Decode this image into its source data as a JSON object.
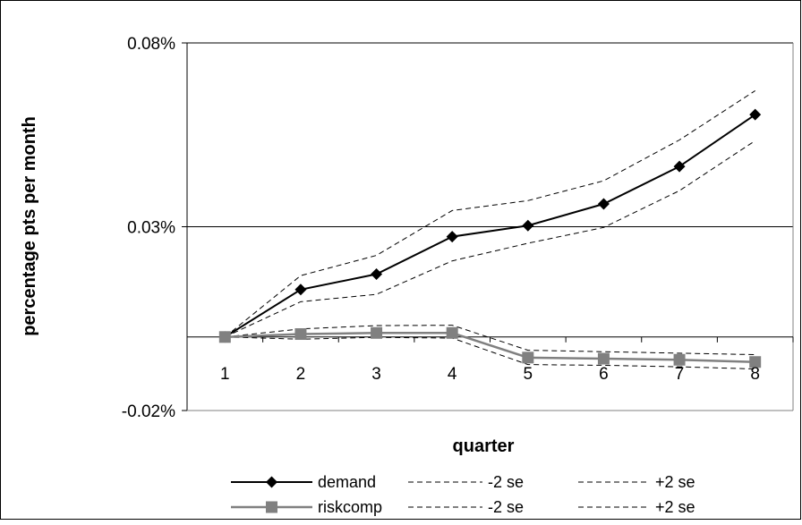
{
  "chart_data": {
    "type": "line",
    "title": "",
    "xlabel": "quarter",
    "ylabel": "percentage pts per month",
    "x": [
      1,
      2,
      3,
      4,
      5,
      6,
      7,
      8
    ],
    "ylim": [
      -0.0002,
      0.0008
    ],
    "yticks": [
      {
        "value": 0.0008,
        "label": "0.08%"
      },
      {
        "value": 0.0003,
        "label": "0.03%"
      },
      {
        "value": -0.0002,
        "label": "-0.02%"
      }
    ],
    "grid": "horizontal at tick values",
    "legend_position": "bottom",
    "series": [
      {
        "name": "demand",
        "color": "#000000",
        "marker": "diamond",
        "style": "solid",
        "values": [
          0.0,
          0.000129,
          0.000171,
          0.000273,
          0.000303,
          0.000362,
          0.000464,
          0.000605
        ]
      },
      {
        "name": "-2 se",
        "color": "#000000",
        "style": "dashed",
        "values": [
          0.0,
          9.6e-05,
          0.000116,
          0.000207,
          0.000255,
          0.000298,
          0.000398,
          0.000534
        ]
      },
      {
        "name": "+2 se",
        "color": "#000000",
        "style": "dashed",
        "values": [
          0.0,
          0.000167,
          0.000222,
          0.000344,
          0.000371,
          0.000425,
          0.000536,
          0.00067
        ]
      },
      {
        "name": "riskcomp",
        "color": "#808080",
        "marker": "square",
        "style": "solid",
        "values": [
          0.0,
          8e-06,
          1.1e-05,
          1.1e-05,
          -5.6e-05,
          -5.9e-05,
          -6.2e-05,
          -6.8e-05
        ]
      },
      {
        "name": "-2 se",
        "color": "#000000",
        "style": "dashed",
        "values": [
          0.0,
          -6e-06,
          -1e-06,
          -3e-06,
          -7.5e-05,
          -7.7e-05,
          -8.1e-05,
          -8.7e-05
        ]
      },
      {
        "name": "+2 se",
        "color": "#000000",
        "style": "dashed",
        "values": [
          0.0,
          2.2e-05,
          3.1e-05,
          3.2e-05,
          -3.6e-05,
          -4e-05,
          -4.4e-05,
          -4.8e-05
        ]
      }
    ]
  }
}
